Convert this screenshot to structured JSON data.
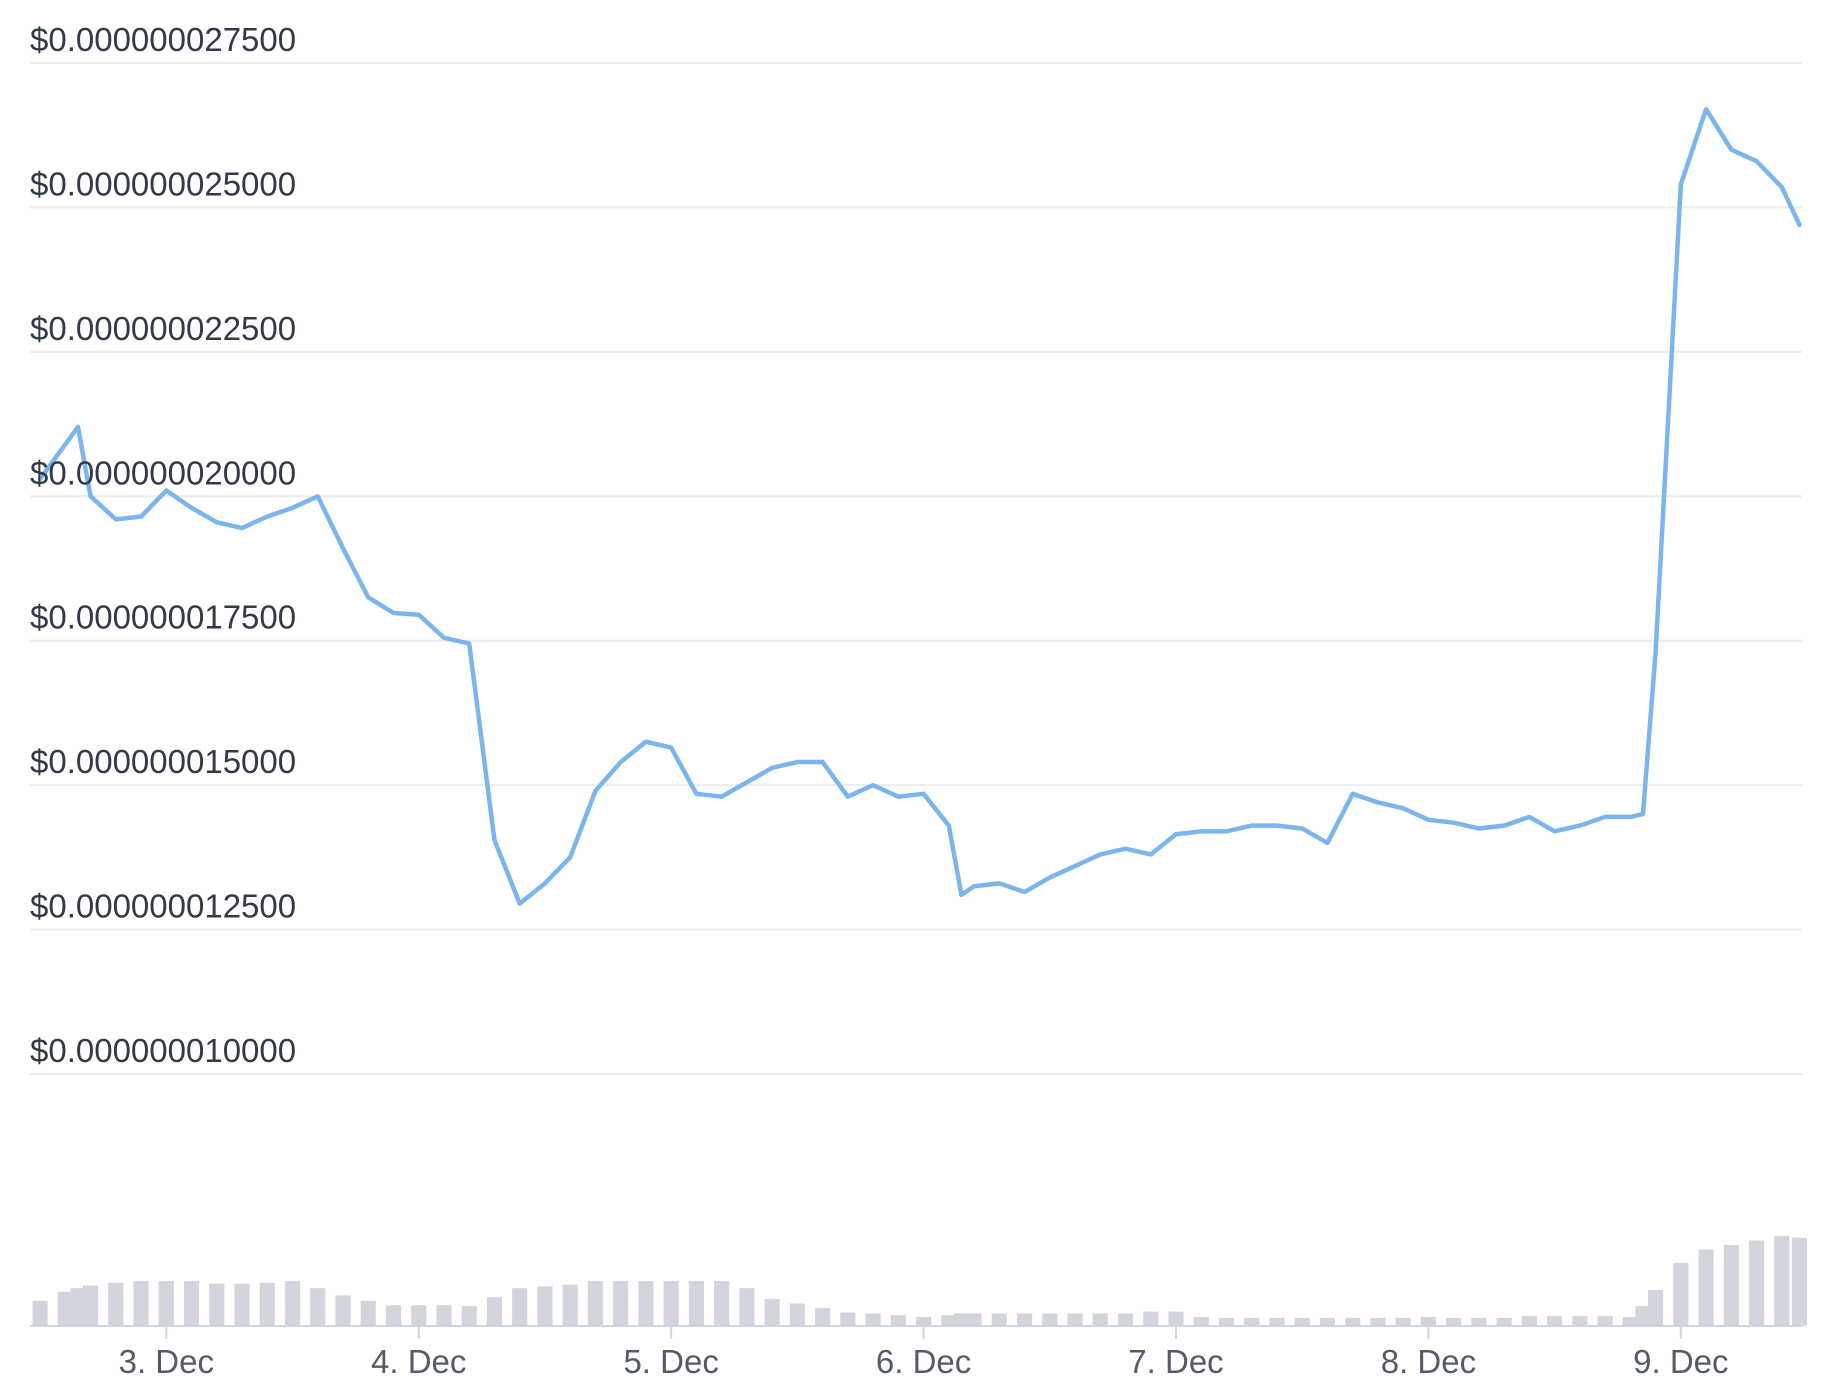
{
  "chart_data": {
    "type": "line",
    "color": "#7cb5ec",
    "x": [
      2.5,
      2.6,
      2.65,
      2.7,
      2.8,
      2.9,
      3.0,
      3.1,
      3.2,
      3.3,
      3.4,
      3.5,
      3.6,
      3.7,
      3.8,
      3.9,
      4.0,
      4.1,
      4.2,
      4.3,
      4.4,
      4.5,
      4.6,
      4.7,
      4.8,
      4.9,
      5.0,
      5.1,
      5.2,
      5.3,
      5.4,
      5.5,
      5.6,
      5.7,
      5.8,
      5.9,
      6.0,
      6.1,
      6.15,
      6.2,
      6.3,
      6.4,
      6.5,
      6.6,
      6.7,
      6.8,
      6.9,
      7.0,
      7.1,
      7.2,
      7.3,
      7.4,
      7.5,
      7.6,
      7.7,
      7.8,
      7.9,
      8.0,
      8.1,
      8.2,
      8.3,
      8.4,
      8.5,
      8.6,
      8.7,
      8.8,
      8.85,
      8.9,
      9.0,
      9.1,
      9.2,
      9.3,
      9.4,
      9.47
    ],
    "values": [
      2.03e-08,
      2.09e-08,
      2.12e-08,
      2e-08,
      1.96e-08,
      1.965e-08,
      2.01e-08,
      1.98e-08,
      1.955e-08,
      1.945e-08,
      1.965e-08,
      1.98e-08,
      2e-08,
      1.91e-08,
      1.825e-08,
      1.798e-08,
      1.795e-08,
      1.755e-08,
      1.745e-08,
      1.405e-08,
      1.295e-08,
      1.33e-08,
      1.375e-08,
      1.49e-08,
      1.54e-08,
      1.575e-08,
      1.565e-08,
      1.485e-08,
      1.48e-08,
      1.505e-08,
      1.53e-08,
      1.54e-08,
      1.54e-08,
      1.48e-08,
      1.5e-08,
      1.48e-08,
      1.485e-08,
      1.43e-08,
      1.31e-08,
      1.325e-08,
      1.33e-08,
      1.315e-08,
      1.34e-08,
      1.36e-08,
      1.38e-08,
      1.39e-08,
      1.38e-08,
      1.415e-08,
      1.42e-08,
      1.42e-08,
      1.43e-08,
      1.43e-08,
      1.425e-08,
      1.4e-08,
      1.485e-08,
      1.47e-08,
      1.46e-08,
      1.44e-08,
      1.435e-08,
      1.425e-08,
      1.43e-08,
      1.445e-08,
      1.42e-08,
      1.43e-08,
      1.445e-08,
      1.445e-08,
      1.45e-08,
      1.73e-08,
      2.54e-08,
      2.67e-08,
      2.6e-08,
      2.58e-08,
      2.535e-08,
      2.47e-08
    ],
    "volume_color": "#d3d5dd",
    "volume_values": [
      28,
      38,
      42,
      45,
      48,
      50,
      50,
      50,
      47,
      47,
      48,
      50,
      42,
      34,
      28,
      23,
      23,
      23,
      22,
      32,
      42,
      44,
      46,
      50,
      50,
      50,
      50,
      50,
      50,
      42,
      30,
      25,
      20,
      15,
      14,
      12,
      10,
      12,
      14,
      14,
      14,
      14,
      14,
      14,
      14,
      14,
      16,
      16,
      10,
      9,
      9,
      9,
      9,
      9,
      9,
      9,
      9,
      10,
      9,
      9,
      9,
      11,
      11,
      11,
      11,
      10,
      22,
      40,
      70,
      85,
      90,
      95,
      100,
      98
    ],
    "xlim": [
      2.46,
      9.48
    ],
    "xticks": [
      {
        "value": 3,
        "label": "3. Dec"
      },
      {
        "value": 4,
        "label": "4. Dec"
      },
      {
        "value": 5,
        "label": "5. Dec"
      },
      {
        "value": 6,
        "label": "6. Dec"
      },
      {
        "value": 7,
        "label": "7. Dec"
      },
      {
        "value": 8,
        "label": "8. Dec"
      },
      {
        "value": 9,
        "label": "9. Dec"
      }
    ],
    "ylim": [
      1e-08,
      2.75e-08
    ],
    "yticks": [
      {
        "value": 1e-08,
        "label": "$0.000000010000"
      },
      {
        "value": 1.25e-08,
        "label": "$0.000000012500"
      },
      {
        "value": 1.5e-08,
        "label": "$0.000000015000"
      },
      {
        "value": 1.75e-08,
        "label": "$0.000000017500"
      },
      {
        "value": 2e-08,
        "label": "$0.000000020000"
      },
      {
        "value": 2.25e-08,
        "label": "$0.000000022500"
      },
      {
        "value": 2.5e-08,
        "label": "$0.000000025000"
      },
      {
        "value": 2.75e-08,
        "label": "$0.000000027500"
      }
    ],
    "grid": true
  }
}
